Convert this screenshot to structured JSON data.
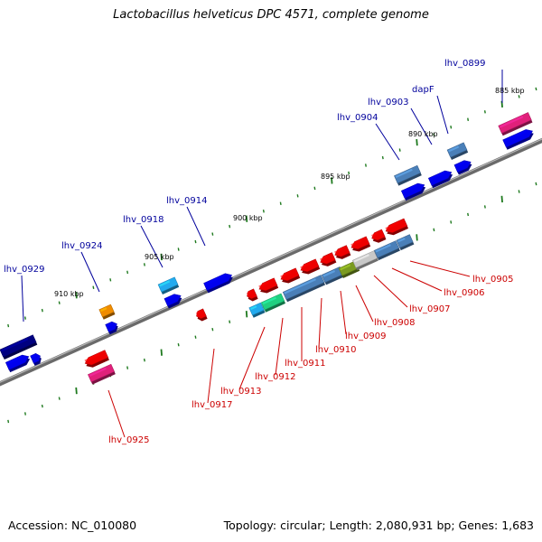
{
  "title": "Lactobacillus helveticus DPC 4571, complete genome",
  "footer": {
    "accession": "Accession: NC_010080",
    "info": "Topology: circular; Length: 2,080,931 bp; Genes: 1,683"
  },
  "scale_labels": [
    "885 kbp",
    "890 kbp",
    "895 kbp",
    "900 kbp",
    "905 kbp",
    "910 kbp"
  ],
  "top_gene_labels": [
    "lhv_0899",
    "dapF",
    "lhv_0903",
    "lhv_0904",
    "lhv_0914",
    "lhv_0918",
    "lhv_0924",
    "lhv_0929"
  ],
  "bottom_gene_labels": [
    "lhv_0905",
    "lhv_0906",
    "lhv_0907",
    "lhv_0908",
    "lhv_0909",
    "lhv_0910",
    "lhv_0911",
    "lhv_0912",
    "lhv_0913",
    "lhv_0917",
    "lhv_0925"
  ],
  "colors": {
    "top_label": "#00009c",
    "bottom_label": "#cc0000",
    "backbone": "#7a7a7a",
    "tick": "#1f7a1f",
    "blue_gene": "#0000ee",
    "steel_gene": "#4a7fb8",
    "red_gene": "#ee0000",
    "pink_gene": "#e0207a",
    "cyan_gene": "#22aaee",
    "orange_gene": "#f08c00",
    "green_gene": "#20d080",
    "olive_gene": "#7a9a20",
    "grey_gene": "#c8c8c8",
    "navy_gene": "#000080"
  }
}
